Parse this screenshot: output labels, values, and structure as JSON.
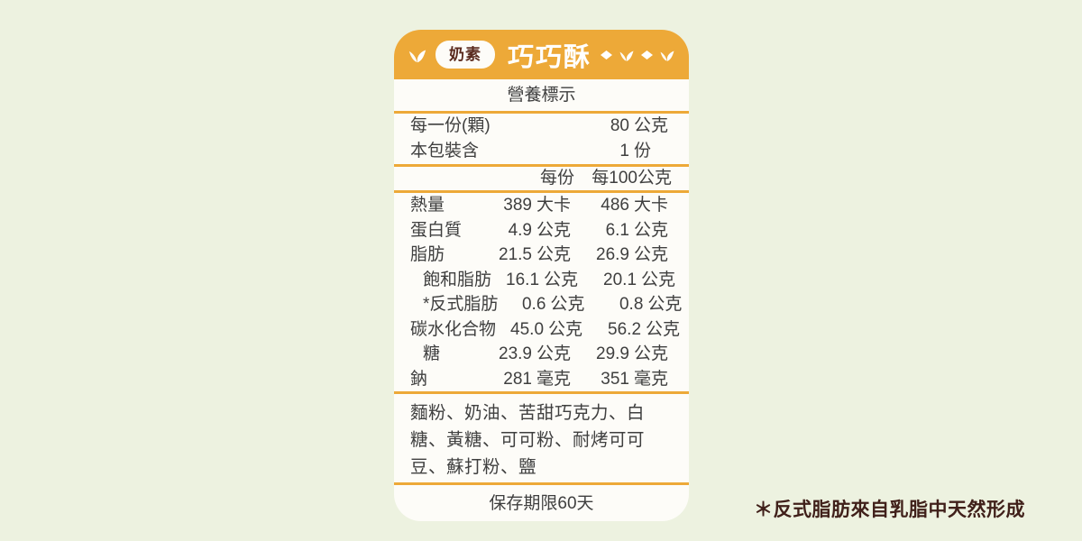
{
  "card": {
    "header": {
      "badge": "奶素",
      "title": "巧巧酥"
    },
    "nutrition_title": "營養標示",
    "serving_rows": [
      {
        "label": "每一份(顆)",
        "value": "80",
        "unit": "公克"
      },
      {
        "label": "本包裝含",
        "value": "1",
        "unit": "份"
      }
    ],
    "column_headers": {
      "per_serving": "每份",
      "per_100g": "每100公克"
    },
    "nutrition_rows": [
      {
        "label": "熱量",
        "sub": false,
        "per_serving": "389",
        "unit1": "大卡",
        "per_100g": "486",
        "unit2": "大卡"
      },
      {
        "label": "蛋白質",
        "sub": false,
        "per_serving": "4.9",
        "unit1": "公克",
        "per_100g": "6.1",
        "unit2": "公克"
      },
      {
        "label": "脂肪",
        "sub": false,
        "per_serving": "21.5",
        "unit1": "公克",
        "per_100g": "26.9",
        "unit2": "公克"
      },
      {
        "label": "飽和脂肪",
        "sub": true,
        "per_serving": "16.1",
        "unit1": "公克",
        "per_100g": "20.1",
        "unit2": "公克"
      },
      {
        "label": "*反式脂肪",
        "sub": true,
        "per_serving": "0.6",
        "unit1": "公克",
        "per_100g": "0.8",
        "unit2": "公克"
      },
      {
        "label": "碳水化合物",
        "sub": false,
        "per_serving": "45.0",
        "unit1": "公克",
        "per_100g": "56.2",
        "unit2": "公克"
      },
      {
        "label": "糖",
        "sub": true,
        "per_serving": "23.9",
        "unit1": "公克",
        "per_100g": "29.9",
        "unit2": "公克"
      },
      {
        "label": "鈉",
        "sub": false,
        "per_serving": "281",
        "unit1": "毫克",
        "per_100g": "351",
        "unit2": "毫克"
      }
    ],
    "ingredients": "麵粉、奶油、苦甜巧克力、白糖、黃糖、可可粉、耐烤可可豆、蘇打粉、鹽",
    "expiry": "保存期限60天"
  },
  "note": "＊反式脂肪來自乳脂中天然形成",
  "colors": {
    "accent_orange": "#EDA938",
    "background": "#EDF2E0",
    "card_bg": "#FDFCF8",
    "text": "#3F3F3F",
    "maroon": "#5A2A1E",
    "note_color": "#40201A"
  }
}
